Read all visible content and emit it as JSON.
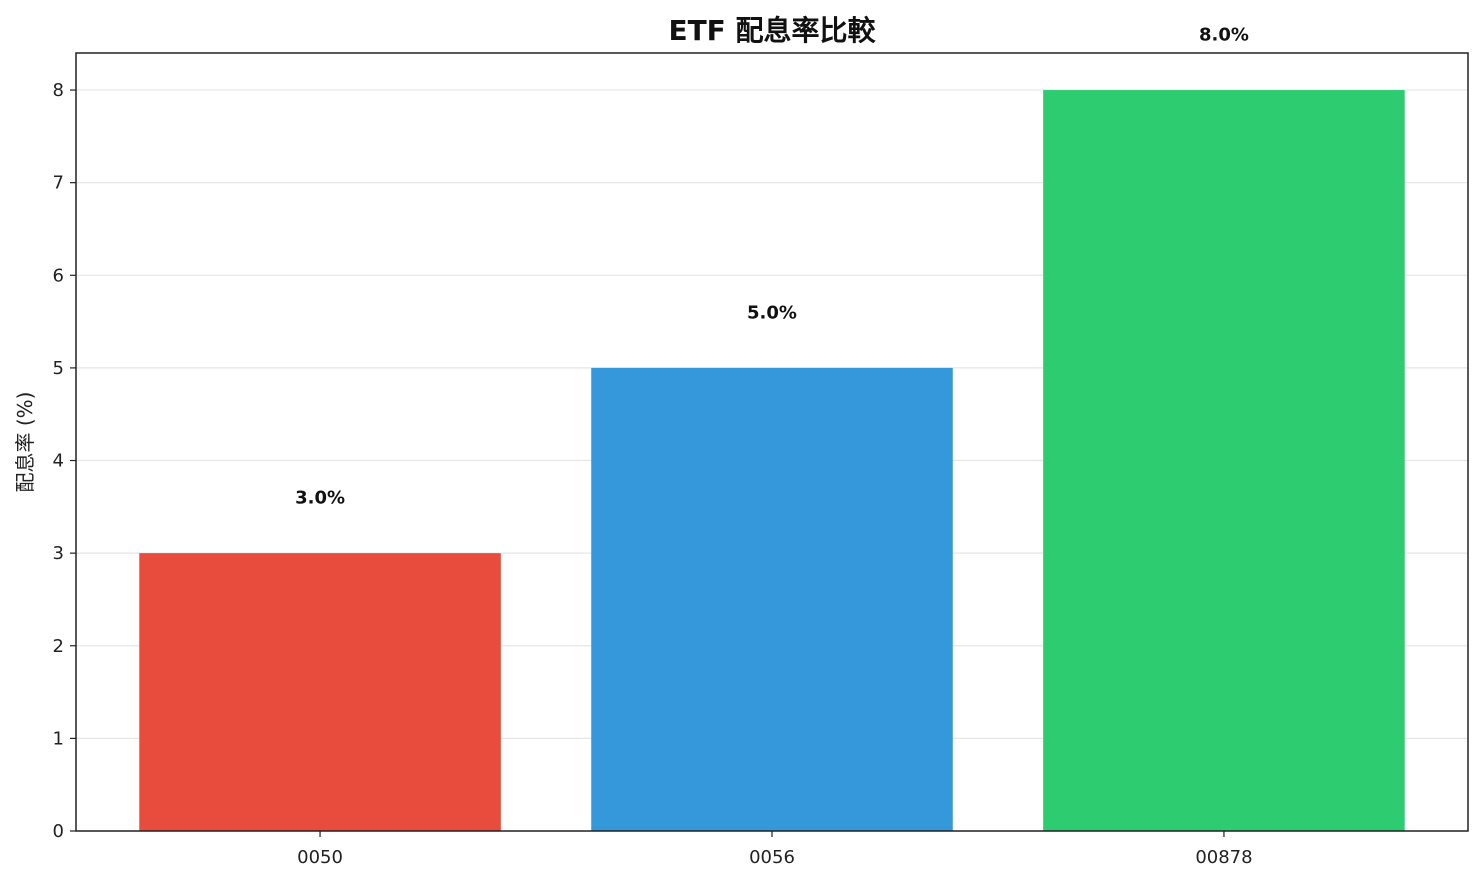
{
  "chart_data": {
    "type": "bar",
    "title": "ETF 配息率比較",
    "xlabel": "",
    "ylabel": "配息率 (%)",
    "categories": [
      "0050",
      "0056",
      "00878"
    ],
    "values": [
      3.0,
      5.0,
      8.0
    ],
    "data_labels": [
      "3.0%",
      "5.0%",
      "8.0%"
    ],
    "colors": [
      "#e74c3c",
      "#3498db",
      "#2ecc71"
    ],
    "ylim": [
      0,
      8.4
    ],
    "yticks": [
      0,
      1,
      2,
      3,
      4,
      5,
      6,
      7,
      8
    ],
    "grid": true,
    "legend": "none"
  }
}
